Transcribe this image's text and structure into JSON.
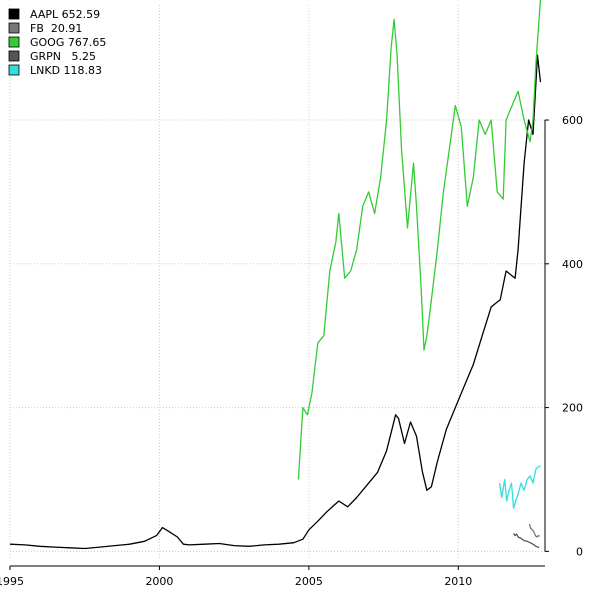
{
  "chart_data": {
    "type": "line",
    "xlim": [
      1995,
      2012.9
    ],
    "ylim": [
      -12,
      760
    ],
    "grid": true,
    "y_axis_side": "right",
    "legend_placement": "top-left",
    "x_ticks": [
      1995,
      2000,
      2005,
      2010
    ],
    "x_tick_labels": [
      "1995",
      "2000",
      "2005",
      "2010"
    ],
    "y_ticks": [
      0,
      200,
      400,
      600
    ],
    "y_tick_labels": [
      "0",
      "200",
      "400",
      "600"
    ],
    "series": [
      {
        "name": "AAPL 652.59",
        "color": "#000000",
        "width": 1.3,
        "x": [
          1995.0,
          1995.5,
          1996.0,
          1996.5,
          1997.0,
          1997.5,
          1998.0,
          1998.5,
          1999.0,
          1999.5,
          1999.9,
          2000.1,
          2000.3,
          2000.6,
          2000.8,
          2001.0,
          2001.5,
          2002.0,
          2002.5,
          2003.0,
          2003.5,
          2004.0,
          2004.5,
          2004.8,
          2005.0,
          2005.3,
          2005.6,
          2006.0,
          2006.3,
          2006.6,
          2007.0,
          2007.3,
          2007.6,
          2007.9,
          2008.0,
          2008.2,
          2008.4,
          2008.6,
          2008.8,
          2008.95,
          2009.1,
          2009.3,
          2009.6,
          2009.9,
          2010.2,
          2010.5,
          2010.8,
          2011.1,
          2011.4,
          2011.6,
          2011.9,
          2012.0,
          2012.2,
          2012.35,
          2012.5,
          2012.65,
          2012.75
        ],
        "values": [
          10,
          9,
          7,
          6,
          5,
          4,
          6,
          8,
          10,
          14,
          22,
          33,
          28,
          20,
          10,
          9,
          10,
          11,
          8,
          7,
          9,
          10,
          12,
          17,
          30,
          42,
          55,
          70,
          62,
          75,
          95,
          110,
          140,
          190,
          185,
          150,
          180,
          160,
          110,
          85,
          90,
          125,
          170,
          200,
          230,
          260,
          300,
          340,
          350,
          390,
          380,
          420,
          540,
          600,
          580,
          690,
          652.59
        ]
      },
      {
        "name": "FB  20.91",
        "color": "#777777",
        "width": 1.3,
        "x": [
          2012.38,
          2012.42,
          2012.48,
          2012.53,
          2012.58,
          2012.63,
          2012.68,
          2012.73
        ],
        "values": [
          38,
          32,
          30,
          27,
          22,
          20,
          22,
          20.91
        ]
      },
      {
        "name": "GOOG 767.65",
        "color": "#33cc33",
        "width": 1.3,
        "x": [
          2004.65,
          2004.8,
          2004.95,
          2005.1,
          2005.3,
          2005.5,
          2005.7,
          2005.9,
          2006.0,
          2006.2,
          2006.4,
          2006.6,
          2006.8,
          2007.0,
          2007.2,
          2007.4,
          2007.6,
          2007.75,
          2007.85,
          2007.95,
          2008.1,
          2008.3,
          2008.5,
          2008.6,
          2008.75,
          2008.85,
          2008.95,
          2009.1,
          2009.3,
          2009.5,
          2009.7,
          2009.9,
          2010.1,
          2010.3,
          2010.5,
          2010.7,
          2010.9,
          2011.1,
          2011.3,
          2011.5,
          2011.6,
          2011.8,
          2012.0,
          2012.2,
          2012.4,
          2012.5,
          2012.6,
          2012.75
        ],
        "values": [
          100,
          200,
          190,
          220,
          290,
          300,
          390,
          430,
          470,
          380,
          390,
          420,
          480,
          500,
          470,
          520,
          600,
          700,
          740,
          690,
          560,
          450,
          540,
          480,
          370,
          280,
          300,
          350,
          420,
          500,
          560,
          620,
          590,
          480,
          520,
          600,
          580,
          600,
          500,
          490,
          600,
          620,
          640,
          600,
          570,
          600,
          680,
          767.65
        ]
      },
      {
        "name": "GRPN   5.25",
        "color": "#555555",
        "width": 1.3,
        "x": [
          2011.85,
          2011.9,
          2011.95,
          2012.0,
          2012.1,
          2012.2,
          2012.3,
          2012.4,
          2012.5,
          2012.6,
          2012.7
        ],
        "values": [
          25,
          22,
          24,
          20,
          18,
          15,
          14,
          12,
          10,
          7,
          5.25
        ]
      },
      {
        "name": "LNKD 118.83",
        "color": "#33dddd",
        "width": 1.3,
        "x": [
          2011.38,
          2011.45,
          2011.55,
          2011.62,
          2011.7,
          2011.78,
          2011.85,
          2011.92,
          2012.0,
          2012.1,
          2012.2,
          2012.3,
          2012.4,
          2012.5,
          2012.6,
          2012.7,
          2012.75
        ],
        "values": [
          95,
          75,
          100,
          70,
          85,
          95,
          60,
          70,
          80,
          95,
          85,
          100,
          105,
          95,
          115,
          118,
          118.83
        ]
      }
    ]
  }
}
